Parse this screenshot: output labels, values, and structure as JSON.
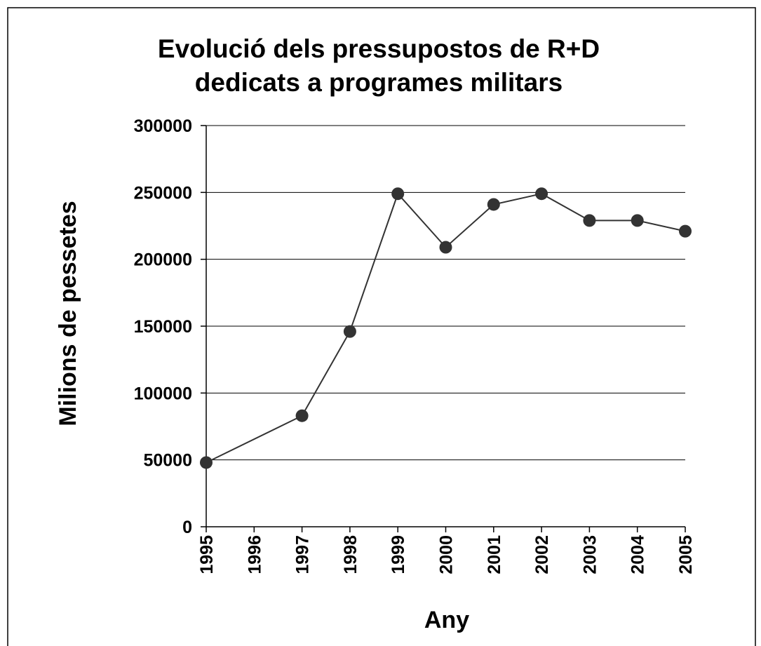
{
  "chart_data": {
    "type": "line",
    "title": [
      "Evolució dels pressupostos de R+D",
      "dedicats a programes militars"
    ],
    "x_label": "Any",
    "y_label": "Milions de pessetes",
    "x": [
      1995,
      1997,
      1998,
      1999,
      2000,
      2001,
      2002,
      2003,
      2004,
      2005
    ],
    "values": [
      48000,
      83000,
      146000,
      249000,
      209000,
      241000,
      249000,
      229000,
      229000,
      221000
    ],
    "color": "#333333",
    "xlim": [
      1995,
      2005
    ],
    "xticks": [
      1995,
      1996,
      1997,
      1998,
      1999,
      2000,
      2001,
      2002,
      2003,
      2004,
      2005
    ],
    "ylim": [
      0,
      300000
    ],
    "yticks": [
      0,
      50000,
      100000,
      150000,
      200000,
      250000,
      300000
    ],
    "grid": true
  }
}
